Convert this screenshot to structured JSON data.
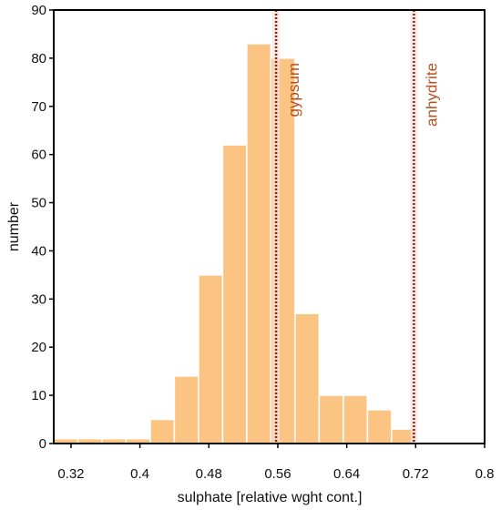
{
  "chart_data": {
    "type": "bar",
    "xlabel": "sulphate [relative wght cont.]",
    "ylabel": "number",
    "xlim": [
      0.3,
      0.8
    ],
    "ylim": [
      0,
      90
    ],
    "x_ticks": [
      "0.32",
      "0.4",
      "0.48",
      "0.56",
      "0.64",
      "0.72",
      "0.8"
    ],
    "y_ticks": [
      "0",
      "10",
      "20",
      "30",
      "40",
      "50",
      "60",
      "70",
      "80",
      "90"
    ],
    "bin_width": 0.028,
    "bins": [
      {
        "x0": 0.3,
        "value": 1
      },
      {
        "x0": 0.328,
        "value": 1
      },
      {
        "x0": 0.356,
        "value": 1
      },
      {
        "x0": 0.384,
        "value": 1
      },
      {
        "x0": 0.412,
        "value": 5
      },
      {
        "x0": 0.44,
        "value": 14
      },
      {
        "x0": 0.468,
        "value": 35
      },
      {
        "x0": 0.496,
        "value": 62
      },
      {
        "x0": 0.524,
        "value": 83
      },
      {
        "x0": 0.552,
        "value": 80
      },
      {
        "x0": 0.58,
        "value": 27
      },
      {
        "x0": 0.608,
        "value": 10
      },
      {
        "x0": 0.636,
        "value": 10
      },
      {
        "x0": 0.664,
        "value": 7
      },
      {
        "x0": 0.692,
        "value": 3
      }
    ],
    "reference_lines": [
      {
        "label": "gypsum",
        "x": 0.558
      },
      {
        "label": "anhydrite",
        "x": 0.718
      }
    ],
    "colors": {
      "bar_fill": "#fbc483",
      "bar_stroke": "#ffffff",
      "ref_line": "#8b2a00",
      "ref_label": "#b5501e",
      "ref_halo": "#f6dfe3",
      "axis": "#000000"
    }
  }
}
